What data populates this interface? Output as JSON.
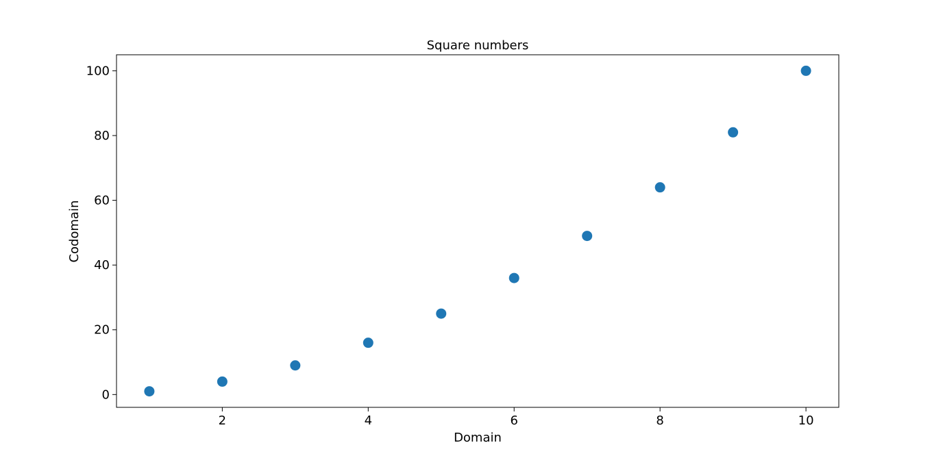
{
  "chart_data": {
    "type": "scatter",
    "title": "Square numbers",
    "xlabel": "Domain",
    "ylabel": "Codomain",
    "xlim": [
      0.55,
      10.45
    ],
    "ylim": [
      -3.95,
      104.95
    ],
    "xticks": [
      2,
      4,
      6,
      8,
      10
    ],
    "yticks": [
      0,
      20,
      40,
      60,
      80,
      100
    ],
    "grid": false,
    "color": "#1f77b4",
    "series": [
      {
        "x": [
          1,
          2,
          3,
          4,
          5,
          6,
          7,
          8,
          9,
          10
        ],
        "y": [
          1,
          4,
          9,
          16,
          25,
          36,
          49,
          64,
          81,
          100
        ]
      }
    ]
  }
}
